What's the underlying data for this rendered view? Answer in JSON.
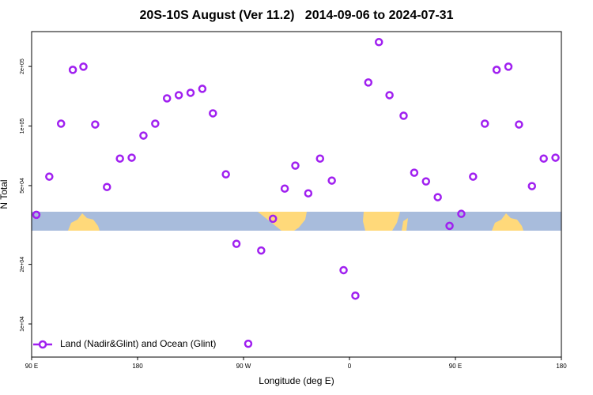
{
  "chart_data": {
    "type": "scatter",
    "title": "20S-10S August (Ver 11.2)   2014-09-06 to 2024-07-31",
    "x_label": "Longitude (deg E)",
    "y_label": "N Total",
    "log_y": true,
    "xlim": [
      90,
      540
    ],
    "ylim": [
      6800,
      300000
    ],
    "xticks": [
      {
        "value": 90,
        "label": "90 E"
      },
      {
        "value": 180,
        "label": "180"
      },
      {
        "value": 270,
        "label": "90 W"
      },
      {
        "value": 360,
        "label": "0"
      },
      {
        "value": 450,
        "label": "90 E"
      },
      {
        "value": 540,
        "label": "180"
      }
    ],
    "yticks": [
      {
        "value": 10000,
        "label": "1e+04"
      },
      {
        "value": 20000,
        "label": "2e+04"
      },
      {
        "value": 50000,
        "label": "5e+04"
      },
      {
        "value": 100000,
        "label": "1e+05"
      },
      {
        "value": 200000,
        "label": "2e+05"
      }
    ],
    "legend_position": "bottom-left",
    "series": [
      {
        "name": "Land (Nadir&Glint) and Ocean (Glint)",
        "color": "#a020f0",
        "x": [
          94,
          105,
          115,
          125,
          134,
          144,
          154,
          165,
          175,
          185,
          195,
          205,
          215,
          225,
          235,
          244,
          255,
          264,
          274,
          285,
          295,
          305,
          314,
          325,
          335,
          345,
          355,
          365,
          376,
          385,
          394,
          406,
          415,
          425,
          435,
          445,
          455,
          465,
          475,
          485,
          495,
          504,
          515,
          525,
          535
        ],
        "values": [
          35600,
          55500,
          102800,
          192300,
          199500,
          101800,
          49200,
          68500,
          69200,
          89500,
          102800,
          138000,
          143200,
          147200,
          154200,
          115900,
          57000,
          25400,
          7940,
          23500,
          34000,
          48300,
          63100,
          45700,
          68500,
          53000,
          18700,
          13900,
          166000,
          265500,
          143200,
          112700,
          58100,
          52500,
          43700,
          31300,
          36000,
          55500,
          102800,
          192300,
          199500,
          101800,
          49700,
          68500,
          69200
        ]
      }
    ]
  }
}
